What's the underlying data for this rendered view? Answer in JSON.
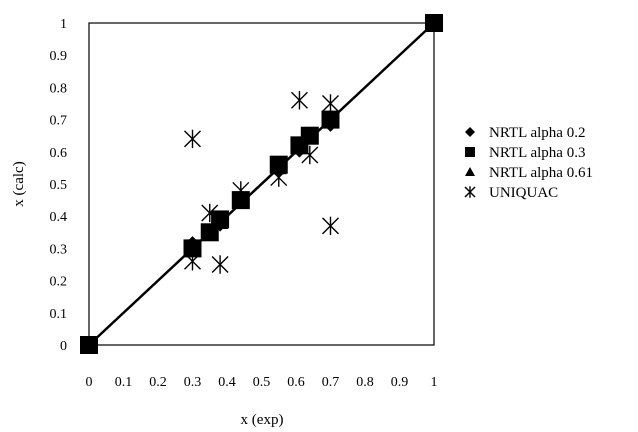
{
  "chart_data": {
    "type": "scatter",
    "title": "",
    "xlabel": "x (exp)",
    "ylabel": "x (calc)",
    "xlim": [
      0,
      1
    ],
    "ylim": [
      0,
      1
    ],
    "x_ticks": [
      "0",
      "0.1",
      "0.2",
      "0.3",
      "0.4",
      "0.5",
      "0.6",
      "0.7",
      "0.8",
      "0.9",
      "1"
    ],
    "y_ticks": [
      "0",
      "0.1",
      "0.2",
      "0.3",
      "0.4",
      "0.5",
      "0.6",
      "0.7",
      "0.8",
      "0.9",
      "1"
    ],
    "grid": false,
    "legend_position": "right",
    "diagonal_line": {
      "x": [
        0,
        1
      ],
      "y": [
        0,
        1
      ]
    },
    "series": [
      {
        "name": "NRTL alpha 0.2",
        "marker": "diamond",
        "color": "#000000",
        "x": [
          0,
          0.3,
          0.35,
          0.38,
          0.44,
          0.55,
          0.61,
          0.64,
          0.7,
          1
        ],
        "y": [
          0,
          0.31,
          0.35,
          0.38,
          0.45,
          0.55,
          0.61,
          0.65,
          0.69,
          1
        ]
      },
      {
        "name": "NRTL alpha 0.3",
        "marker": "square",
        "color": "#000000",
        "x": [
          0,
          0.3,
          0.35,
          0.38,
          0.44,
          0.55,
          0.61,
          0.64,
          0.7,
          1
        ],
        "y": [
          0,
          0.3,
          0.35,
          0.39,
          0.45,
          0.56,
          0.62,
          0.65,
          0.7,
          1
        ]
      },
      {
        "name": "NRTL alpha 0.61",
        "marker": "triangle",
        "color": "#000000",
        "x": [
          0,
          0.3,
          0.35,
          0.38,
          0.44,
          0.55,
          0.61,
          0.64,
          0.7,
          1
        ],
        "y": [
          0,
          0.3,
          0.35,
          0.38,
          0.45,
          0.55,
          0.62,
          0.65,
          0.7,
          1
        ]
      },
      {
        "name": "UNIQUAC",
        "marker": "asterisk",
        "color": "#000000",
        "x": [
          0.3,
          0.3,
          0.35,
          0.38,
          0.44,
          0.55,
          0.61,
          0.64,
          0.7,
          0.7
        ],
        "y": [
          0.64,
          0.26,
          0.41,
          0.25,
          0.48,
          0.52,
          0.76,
          0.59,
          0.37,
          0.75
        ]
      }
    ]
  }
}
